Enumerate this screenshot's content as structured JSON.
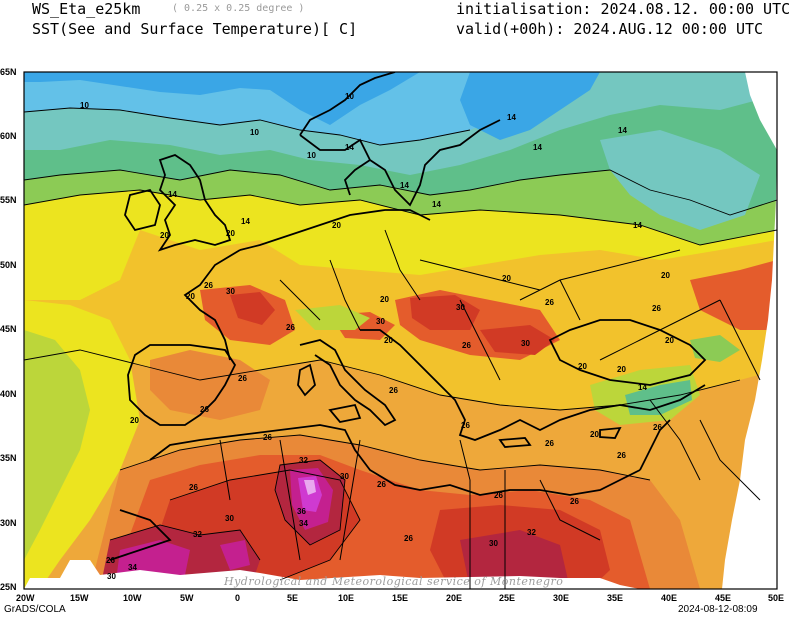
{
  "header": {
    "model": "WS_Eta_e25km",
    "resolution": "( 0.25 x 0.25 degree )",
    "field": "SST(See and Surface Temperature)[ C]",
    "init": "initialisation: 2024.08.12. 00:00 UTC",
    "valid": "valid(+00h): 2024.AUG.12 00:00 UTC"
  },
  "axes": {
    "lon_labels": [
      "20W",
      "15W",
      "10W",
      "5W",
      "0",
      "5E",
      "10E",
      "15E",
      "20E",
      "25E",
      "30E",
      "35E",
      "40E",
      "45E",
      "50E"
    ],
    "lat_labels": [
      "65N",
      "60N",
      "55N",
      "50N",
      "45N",
      "40N",
      "35N",
      "30N",
      "25N"
    ]
  },
  "footer": {
    "left": "GrADS/COLA",
    "right": "2024-08-12-08:09",
    "credit": "Hydrological and Meteorological service of Montenegro"
  },
  "contour_labels": [
    "10",
    "14",
    "20",
    "26",
    "30",
    "32",
    "34",
    "36"
  ],
  "colors": {
    "c_lt8": "#3aa6e6",
    "c_10": "#63c1e8",
    "c_12": "#74c7c0",
    "c_14": "#5fbf8a",
    "c_16": "#8ccb55",
    "c_18": "#bcd63a",
    "c_20": "#ece41f",
    "c_22": "#f2c22c",
    "c_24": "#eea83a",
    "c_26": "#e98938",
    "c_28": "#e45c2c",
    "c_30": "#d13a25",
    "c_32": "#b3263f",
    "c_34": "#c4208f",
    "c_36": "#cf3ad1",
    "c_38": "#e9a8ef"
  }
}
